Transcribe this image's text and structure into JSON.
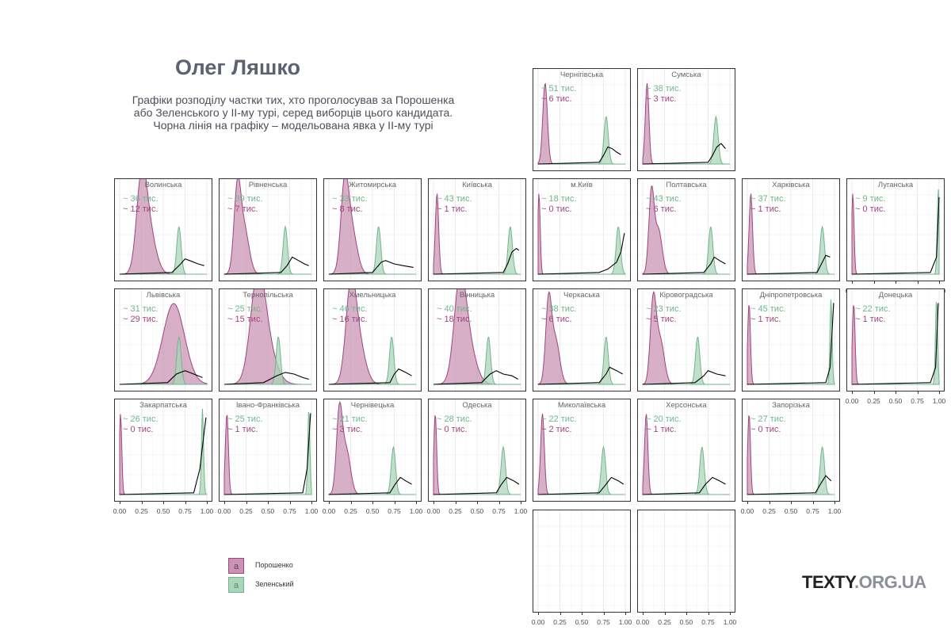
{
  "title": "Олег Ляшко",
  "subtitle_lines": [
    "Графіки розподілу частки тих, хто проголосував за Порошенка",
    "або Зеленського у ІІ-му турі, серед виборців цього кандидата.",
    "Чорна лінія на графіку – модельована явка у ІІ-му турі"
  ],
  "brand": {
    "main": "TEXTY",
    "rest": ".ORG.UA"
  },
  "colors": {
    "poroshenko": "#a0457f",
    "poroshenko_fill": "#c994b4",
    "zelensky": "#6fb68c",
    "zelensky_fill": "#acd4b8",
    "turnout": "#000000"
  },
  "legend": [
    {
      "key": "a",
      "label": "Порошенко",
      "series": "poroshenko"
    },
    {
      "key": "a",
      "label": "Зеленський",
      "series": "zelensky"
    }
  ],
  "chart_data": {
    "type": "area",
    "x_ticks": [
      "0.00",
      "0.25",
      "0.50",
      "0.75",
      "1.00"
    ],
    "xlim": [
      0,
      1
    ],
    "grid": true,
    "legend_position": "bottom-left",
    "unit": "тис.",
    "regions": [
      {
        "name": "Чернігівська",
        "zelensky": "51",
        "poroshenko": "6",
        "p_peak": 0.08,
        "z_peak": 0.78,
        "turnout": [
          [
            0.7,
            0.02
          ],
          [
            0.75,
            0.1
          ],
          [
            0.8,
            0.2
          ],
          [
            0.85,
            0.18
          ],
          [
            0.9,
            0.14
          ],
          [
            0.95,
            0.11
          ]
        ]
      },
      {
        "name": "Сумська",
        "zelensky": "38",
        "poroshenko": "3",
        "p_peak": 0.05,
        "z_peak": 0.84,
        "turnout": [
          [
            0.75,
            0.02
          ],
          [
            0.8,
            0.1
          ],
          [
            0.85,
            0.2
          ],
          [
            0.9,
            0.24
          ],
          [
            0.95,
            0.18
          ]
        ]
      },
      {
        "name": "Волинська",
        "zelensky": "36",
        "poroshenko": "12",
        "p_peak": 0.25,
        "z_peak": 0.68,
        "turnout": [
          [
            0.6,
            0.02
          ],
          [
            0.7,
            0.12
          ],
          [
            0.75,
            0.18
          ],
          [
            0.8,
            0.16
          ],
          [
            0.9,
            0.12
          ],
          [
            0.97,
            0.1
          ]
        ]
      },
      {
        "name": "Рівненська",
        "zelensky": "39",
        "poroshenko": "7",
        "p_peak": 0.15,
        "z_peak": 0.7,
        "turnout": [
          [
            0.65,
            0.02
          ],
          [
            0.72,
            0.1
          ],
          [
            0.78,
            0.2
          ],
          [
            0.85,
            0.16
          ],
          [
            0.92,
            0.12
          ],
          [
            0.97,
            0.1
          ]
        ]
      },
      {
        "name": "Житомирська",
        "zelensky": "33",
        "poroshenko": "8",
        "p_peak": 0.18,
        "z_peak": 0.57,
        "turnout": [
          [
            0.5,
            0.02
          ],
          [
            0.6,
            0.14
          ],
          [
            0.65,
            0.16
          ],
          [
            0.75,
            0.12
          ],
          [
            0.85,
            0.1
          ],
          [
            0.97,
            0.08
          ]
        ]
      },
      {
        "name": "Київська",
        "zelensky": "43",
        "poroshenko": "1",
        "p_peak": 0.04,
        "z_peak": 0.88,
        "turnout": [
          [
            0.8,
            0.02
          ],
          [
            0.85,
            0.12
          ],
          [
            0.9,
            0.26
          ],
          [
            0.95,
            0.3
          ],
          [
            0.98,
            0.28
          ]
        ]
      },
      {
        "name": "м.Київ",
        "zelensky": "18",
        "poroshenko": "0",
        "p_peak": 0.01,
        "z_peak": 0.92,
        "turnout": [
          [
            0.7,
            0.02
          ],
          [
            0.8,
            0.06
          ],
          [
            0.9,
            0.14
          ],
          [
            0.95,
            0.26
          ],
          [
            0.99,
            0.48
          ]
        ]
      },
      {
        "name": "Полтавська",
        "zelensky": "43",
        "poroshenko": "6",
        "p_peak": 0.1,
        "z_peak": 0.78,
        "turnout": [
          [
            0.7,
            0.02
          ],
          [
            0.78,
            0.12
          ],
          [
            0.82,
            0.2
          ],
          [
            0.88,
            0.16
          ],
          [
            0.95,
            0.12
          ]
        ]
      },
      {
        "name": "Харківська",
        "zelensky": "37",
        "poroshenko": "1",
        "p_peak": 0.04,
        "z_peak": 0.86,
        "turnout": [
          [
            0.8,
            0.02
          ],
          [
            0.85,
            0.12
          ],
          [
            0.9,
            0.22
          ],
          [
            0.95,
            0.2
          ]
        ]
      },
      {
        "name": "Луганська",
        "zelensky": "9",
        "poroshenko": "0",
        "p_peak": 0.01,
        "z_peak": 0.99,
        "turnout": [
          [
            0.9,
            0.02
          ],
          [
            0.97,
            0.2
          ],
          [
            1.0,
            0.9
          ]
        ]
      },
      {
        "name": "Львівська",
        "zelensky": "31",
        "poroshenko": "29",
        "p_peak": 0.62,
        "z_peak": 0.68,
        "turnout": [
          [
            0.55,
            0.02
          ],
          [
            0.65,
            0.12
          ],
          [
            0.75,
            0.16
          ],
          [
            0.85,
            0.12
          ],
          [
            0.95,
            0.08
          ]
        ]
      },
      {
        "name": "Тернопільська",
        "zelensky": "25",
        "poroshenko": "15",
        "p_peak": 0.38,
        "z_peak": 0.62,
        "turnout": [
          [
            0.45,
            0.02
          ],
          [
            0.6,
            0.1
          ],
          [
            0.7,
            0.14
          ],
          [
            0.8,
            0.12
          ],
          [
            0.9,
            0.08
          ],
          [
            0.97,
            0.06
          ]
        ]
      },
      {
        "name": "Хмельницька",
        "zelensky": "46",
        "poroshenko": "16",
        "p_peak": 0.25,
        "z_peak": 0.72,
        "turnout": [
          [
            0.7,
            0.02
          ],
          [
            0.75,
            0.12
          ],
          [
            0.8,
            0.18
          ],
          [
            0.88,
            0.14
          ],
          [
            0.95,
            0.1
          ]
        ]
      },
      {
        "name": "Вінницька",
        "zelensky": "40",
        "poroshenko": "18",
        "p_peak": 0.3,
        "z_peak": 0.63,
        "turnout": [
          [
            0.55,
            0.02
          ],
          [
            0.65,
            0.12
          ],
          [
            0.72,
            0.16
          ],
          [
            0.8,
            0.12
          ],
          [
            0.9,
            0.1
          ],
          [
            0.97,
            0.06
          ]
        ]
      },
      {
        "name": "Черкаська",
        "zelensky": "38",
        "poroshenko": "6",
        "p_peak": 0.12,
        "z_peak": 0.78,
        "turnout": [
          [
            0.7,
            0.02
          ],
          [
            0.78,
            0.12
          ],
          [
            0.82,
            0.2
          ],
          [
            0.9,
            0.16
          ],
          [
            0.97,
            0.12
          ]
        ]
      },
      {
        "name": "Кіровоградська",
        "zelensky": "23",
        "poroshenko": "5",
        "p_peak": 0.12,
        "z_peak": 0.63,
        "turnout": [
          [
            0.6,
            0.02
          ],
          [
            0.7,
            0.1
          ],
          [
            0.75,
            0.16
          ],
          [
            0.85,
            0.12
          ],
          [
            0.95,
            0.1
          ]
        ]
      },
      {
        "name": "Дніпропетровська",
        "zelensky": "45",
        "poroshenko": "1",
        "p_peak": 0.02,
        "z_peak": 0.96,
        "turnout": [
          [
            0.9,
            0.02
          ],
          [
            0.95,
            0.2
          ],
          [
            0.99,
            0.95
          ]
        ]
      },
      {
        "name": "Донецька",
        "zelensky": "22",
        "poroshenko": "1",
        "p_peak": 0.02,
        "z_peak": 0.97,
        "turnout": [
          [
            0.9,
            0.02
          ],
          [
            0.96,
            0.2
          ],
          [
            0.99,
            0.95
          ]
        ]
      },
      {
        "name": "Закарпатська",
        "zelensky": "26",
        "poroshenko": "0",
        "p_peak": 0.01,
        "z_peak": 0.95,
        "turnout": [
          [
            0.85,
            0.02
          ],
          [
            0.92,
            0.3
          ],
          [
            0.96,
            0.65
          ],
          [
            0.99,
            0.9
          ]
        ]
      },
      {
        "name": "Івано-Франківська",
        "zelensky": "25",
        "poroshenko": "1",
        "p_peak": 0.03,
        "z_peak": 0.97,
        "turnout": [
          [
            0.9,
            0.02
          ],
          [
            0.95,
            0.3
          ],
          [
            0.99,
            0.95
          ]
        ]
      },
      {
        "name": "Чернівецька",
        "zelensky": "21",
        "poroshenko": "3",
        "p_peak": 0.12,
        "z_peak": 0.74,
        "turnout": [
          [
            0.7,
            0.02
          ],
          [
            0.76,
            0.12
          ],
          [
            0.82,
            0.2
          ],
          [
            0.88,
            0.16
          ],
          [
            0.95,
            0.12
          ]
        ]
      },
      {
        "name": "Одеська",
        "zelensky": "28",
        "poroshenko": "0",
        "p_peak": 0.02,
        "z_peak": 0.8,
        "turnout": [
          [
            0.72,
            0.02
          ],
          [
            0.78,
            0.12
          ],
          [
            0.84,
            0.2
          ],
          [
            0.92,
            0.16
          ],
          [
            0.98,
            0.12
          ]
        ]
      },
      {
        "name": "Миколаївська",
        "zelensky": "22",
        "poroshenko": "2",
        "p_peak": 0.05,
        "z_peak": 0.75,
        "turnout": [
          [
            0.7,
            0.02
          ],
          [
            0.78,
            0.12
          ],
          [
            0.84,
            0.2
          ],
          [
            0.92,
            0.16
          ],
          [
            0.98,
            0.12
          ]
        ]
      },
      {
        "name": "Херсонська",
        "zelensky": "20",
        "poroshenko": "1",
        "p_peak": 0.04,
        "z_peak": 0.68,
        "turnout": [
          [
            0.65,
            0.02
          ],
          [
            0.72,
            0.12
          ],
          [
            0.8,
            0.2
          ],
          [
            0.88,
            0.16
          ],
          [
            0.95,
            0.12
          ]
        ]
      },
      {
        "name": "Запорізька",
        "zelensky": "27",
        "poroshenko": "0",
        "p_peak": 0.02,
        "z_peak": 0.86,
        "turnout": [
          [
            0.78,
            0.02
          ],
          [
            0.85,
            0.14
          ],
          [
            0.9,
            0.22
          ],
          [
            0.96,
            0.16
          ]
        ]
      },
      {
        "name": "",
        "zelensky": "",
        "poroshenko": "",
        "empty": true
      },
      {
        "name": "",
        "zelensky": "",
        "poroshenko": "",
        "empty": true
      }
    ]
  }
}
